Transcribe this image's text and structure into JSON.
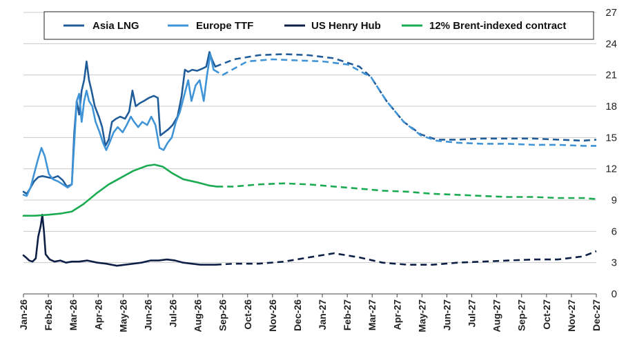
{
  "chart_data": {
    "type": "line",
    "title": "",
    "xlabel": "",
    "ylabel": "",
    "x_range": [
      "2026-01-01",
      "2027-12-01"
    ],
    "x_ticks": [
      "Jan-26",
      "Feb-26",
      "Mar-26",
      "Apr-26",
      "May-26",
      "Jun-26",
      "Jul-26",
      "Aug-26",
      "Sep-26",
      "Oct-26",
      "Nov-26",
      "Dec-26",
      "Jan-27",
      "Feb-27",
      "Mar-27",
      "Apr-27",
      "May-27",
      "Jun-27",
      "Jul-27",
      "Aug-27",
      "Sep-27",
      "Oct-27",
      "Nov-27",
      "Dec-27"
    ],
    "ylim": [
      0,
      27
    ],
    "y_ticks": [
      0,
      3,
      6,
      9,
      12,
      15,
      18,
      21,
      24,
      27
    ],
    "y_axis_side": "right",
    "grid": "horizontal",
    "legend": {
      "placement": "top",
      "boxed": true
    },
    "series": [
      {
        "name": "Asia LNG",
        "color": "#1f5c99",
        "actual": [
          [
            "2026-01-01",
            9.8
          ],
          [
            "2026-01-05",
            9.6
          ],
          [
            "2026-01-09",
            10.1
          ],
          [
            "2026-01-14",
            10.8
          ],
          [
            "2026-01-19",
            11.2
          ],
          [
            "2026-01-24",
            11.3
          ],
          [
            "2026-01-30",
            11.2
          ],
          [
            "2026-02-05",
            11.1
          ],
          [
            "2026-02-12",
            11.3
          ],
          [
            "2026-02-18",
            10.9
          ],
          [
            "2026-02-23",
            10.3
          ],
          [
            "2026-03-01",
            10.5
          ],
          [
            "2026-03-04",
            15.5
          ],
          [
            "2026-03-07",
            18.5
          ],
          [
            "2026-03-10",
            17.2
          ],
          [
            "2026-03-13",
            19.5
          ],
          [
            "2026-03-16",
            20.5
          ],
          [
            "2026-03-19",
            22.3
          ],
          [
            "2026-03-22",
            20.5
          ],
          [
            "2026-03-25",
            19.5
          ],
          [
            "2026-03-29",
            18.0
          ],
          [
            "2026-04-03",
            17.0
          ],
          [
            "2026-04-07",
            16.0
          ],
          [
            "2026-04-11",
            14.2
          ],
          [
            "2026-04-15",
            14.8
          ],
          [
            "2026-04-19",
            16.5
          ],
          [
            "2026-04-24",
            16.8
          ],
          [
            "2026-04-29",
            17.0
          ],
          [
            "2026-05-05",
            16.8
          ],
          [
            "2026-05-10",
            17.5
          ],
          [
            "2026-05-14",
            19.5
          ],
          [
            "2026-05-18",
            18.0
          ],
          [
            "2026-05-23",
            18.3
          ],
          [
            "2026-05-28",
            18.5
          ],
          [
            "2026-06-03",
            18.8
          ],
          [
            "2026-06-09",
            19.0
          ],
          [
            "2026-06-14",
            18.8
          ],
          [
            "2026-06-17",
            15.2
          ],
          [
            "2026-06-22",
            15.5
          ],
          [
            "2026-06-27",
            15.8
          ],
          [
            "2026-07-02",
            16.2
          ],
          [
            "2026-07-08",
            17.0
          ],
          [
            "2026-07-13",
            19.0
          ],
          [
            "2026-07-17",
            21.5
          ],
          [
            "2026-07-21",
            21.3
          ],
          [
            "2026-07-26",
            21.5
          ],
          [
            "2026-08-01",
            21.4
          ],
          [
            "2026-08-07",
            21.6
          ],
          [
            "2026-08-12",
            21.8
          ],
          [
            "2026-08-16",
            23.2
          ],
          [
            "2026-08-19",
            22.5
          ],
          [
            "2026-08-23",
            21.8
          ]
        ],
        "forecast": [
          [
            "2026-08-23",
            21.8
          ],
          [
            "2026-09-15",
            22.5
          ],
          [
            "2026-10-15",
            22.9
          ],
          [
            "2026-11-15",
            23.0
          ],
          [
            "2026-12-15",
            22.9
          ],
          [
            "2027-01-15",
            22.6
          ],
          [
            "2027-02-15",
            21.8
          ],
          [
            "2027-03-01",
            20.8
          ],
          [
            "2027-03-20",
            18.5
          ],
          [
            "2027-04-10",
            16.5
          ],
          [
            "2027-05-01",
            15.3
          ],
          [
            "2027-05-20",
            14.8
          ],
          [
            "2027-06-15",
            14.8
          ],
          [
            "2027-07-15",
            14.9
          ],
          [
            "2027-08-15",
            14.9
          ],
          [
            "2027-09-15",
            14.9
          ],
          [
            "2027-10-15",
            14.8
          ],
          [
            "2027-11-15",
            14.7
          ],
          [
            "2027-12-01",
            14.8
          ]
        ]
      },
      {
        "name": "Europe TTF",
        "color": "#3f94d8",
        "actual": [
          [
            "2026-01-01",
            9.5
          ],
          [
            "2026-01-05",
            9.4
          ],
          [
            "2026-01-10",
            10.3
          ],
          [
            "2026-01-14",
            11.5
          ],
          [
            "2026-01-19",
            13.0
          ],
          [
            "2026-01-23",
            14.0
          ],
          [
            "2026-01-27",
            13.2
          ],
          [
            "2026-02-01",
            11.5
          ],
          [
            "2026-02-06",
            11.0
          ],
          [
            "2026-02-12",
            10.8
          ],
          [
            "2026-02-18",
            10.5
          ],
          [
            "2026-02-24",
            10.2
          ],
          [
            "2026-03-01",
            10.5
          ],
          [
            "2026-03-04",
            14.5
          ],
          [
            "2026-03-07",
            18.5
          ],
          [
            "2026-03-10",
            19.2
          ],
          [
            "2026-03-13",
            16.5
          ],
          [
            "2026-03-16",
            18.5
          ],
          [
            "2026-03-19",
            19.5
          ],
          [
            "2026-03-22",
            18.5
          ],
          [
            "2026-03-26",
            18.0
          ],
          [
            "2026-03-30",
            16.5
          ],
          [
            "2026-04-04",
            15.5
          ],
          [
            "2026-04-08",
            14.5
          ],
          [
            "2026-04-12",
            13.8
          ],
          [
            "2026-04-16",
            14.5
          ],
          [
            "2026-04-21",
            15.5
          ],
          [
            "2026-04-26",
            16.0
          ],
          [
            "2026-05-02",
            15.5
          ],
          [
            "2026-05-07",
            16.2
          ],
          [
            "2026-05-12",
            17.0
          ],
          [
            "2026-05-16",
            16.5
          ],
          [
            "2026-05-21",
            16.0
          ],
          [
            "2026-05-26",
            16.5
          ],
          [
            "2026-06-01",
            16.2
          ],
          [
            "2026-06-06",
            17.0
          ],
          [
            "2026-06-11",
            16.2
          ],
          [
            "2026-06-16",
            14.0
          ],
          [
            "2026-06-21",
            13.8
          ],
          [
            "2026-06-26",
            14.5
          ],
          [
            "2026-07-01",
            15.0
          ],
          [
            "2026-07-06",
            16.5
          ],
          [
            "2026-07-11",
            17.5
          ],
          [
            "2026-07-16",
            19.0
          ],
          [
            "2026-07-21",
            20.5
          ],
          [
            "2026-07-25",
            18.5
          ],
          [
            "2026-07-30",
            20.0
          ],
          [
            "2026-08-04",
            20.5
          ],
          [
            "2026-08-09",
            18.5
          ],
          [
            "2026-08-13",
            21.0
          ],
          [
            "2026-08-17",
            23.0
          ],
          [
            "2026-08-21",
            21.5
          ]
        ],
        "forecast": [
          [
            "2026-08-21",
            21.5
          ],
          [
            "2026-09-01",
            21.0
          ],
          [
            "2026-10-01",
            22.3
          ],
          [
            "2026-11-01",
            22.5
          ],
          [
            "2026-12-01",
            22.4
          ],
          [
            "2027-01-01",
            22.3
          ],
          [
            "2027-02-01",
            22.0
          ],
          [
            "2027-03-01",
            20.8
          ],
          [
            "2027-03-20",
            18.5
          ],
          [
            "2027-04-10",
            16.5
          ],
          [
            "2027-05-01",
            15.2
          ],
          [
            "2027-05-20",
            14.7
          ],
          [
            "2027-06-15",
            14.5
          ],
          [
            "2027-07-15",
            14.4
          ],
          [
            "2027-08-15",
            14.4
          ],
          [
            "2027-09-15",
            14.3
          ],
          [
            "2027-10-15",
            14.3
          ],
          [
            "2027-11-15",
            14.2
          ],
          [
            "2027-12-01",
            14.2
          ]
        ]
      },
      {
        "name": "US Henry Hub",
        "color": "#0d1f45",
        "actual": [
          [
            "2026-01-01",
            3.7
          ],
          [
            "2026-01-04",
            3.5
          ],
          [
            "2026-01-08",
            3.2
          ],
          [
            "2026-01-12",
            3.1
          ],
          [
            "2026-01-16",
            3.4
          ],
          [
            "2026-01-19",
            5.5
          ],
          [
            "2026-01-22",
            6.5
          ],
          [
            "2026-01-24",
            7.6
          ],
          [
            "2026-01-26",
            6.0
          ],
          [
            "2026-01-28",
            3.8
          ],
          [
            "2026-02-02",
            3.3
          ],
          [
            "2026-02-08",
            3.1
          ],
          [
            "2026-02-15",
            3.2
          ],
          [
            "2026-02-22",
            3.0
          ],
          [
            "2026-03-01",
            3.1
          ],
          [
            "2026-03-10",
            3.1
          ],
          [
            "2026-03-20",
            3.2
          ],
          [
            "2026-04-01",
            3.0
          ],
          [
            "2026-04-12",
            2.9
          ],
          [
            "2026-04-25",
            2.7
          ],
          [
            "2026-05-05",
            2.8
          ],
          [
            "2026-05-15",
            2.9
          ],
          [
            "2026-05-25",
            3.0
          ],
          [
            "2026-06-05",
            3.2
          ],
          [
            "2026-06-15",
            3.2
          ],
          [
            "2026-06-25",
            3.3
          ],
          [
            "2026-07-05",
            3.2
          ],
          [
            "2026-07-15",
            3.0
          ],
          [
            "2026-07-25",
            2.9
          ],
          [
            "2026-08-05",
            2.8
          ],
          [
            "2026-08-15",
            2.8
          ],
          [
            "2026-08-23",
            2.8
          ]
        ],
        "forecast": [
          [
            "2026-08-23",
            2.8
          ],
          [
            "2026-09-15",
            2.9
          ],
          [
            "2026-10-15",
            2.9
          ],
          [
            "2026-11-15",
            3.1
          ],
          [
            "2026-12-15",
            3.5
          ],
          [
            "2027-01-15",
            3.9
          ],
          [
            "2027-02-15",
            3.5
          ],
          [
            "2027-03-15",
            3.0
          ],
          [
            "2027-04-15",
            2.8
          ],
          [
            "2027-05-15",
            2.8
          ],
          [
            "2027-06-15",
            3.0
          ],
          [
            "2027-07-15",
            3.1
          ],
          [
            "2027-08-15",
            3.2
          ],
          [
            "2027-09-15",
            3.3
          ],
          [
            "2027-10-15",
            3.3
          ],
          [
            "2027-11-15",
            3.6
          ],
          [
            "2027-12-01",
            4.1
          ]
        ]
      },
      {
        "name": "12% Brent-indexed contract",
        "color": "#1aab52",
        "actual": [
          [
            "2026-01-01",
            7.5
          ],
          [
            "2026-01-15",
            7.5
          ],
          [
            "2026-02-01",
            7.6
          ],
          [
            "2026-02-15",
            7.7
          ],
          [
            "2026-03-01",
            7.9
          ],
          [
            "2026-03-15",
            8.6
          ],
          [
            "2026-04-01",
            9.7
          ],
          [
            "2026-04-15",
            10.5
          ],
          [
            "2026-05-01",
            11.2
          ],
          [
            "2026-05-15",
            11.8
          ],
          [
            "2026-06-01",
            12.3
          ],
          [
            "2026-06-10",
            12.4
          ],
          [
            "2026-06-20",
            12.2
          ],
          [
            "2026-07-01",
            11.6
          ],
          [
            "2026-07-15",
            11.0
          ],
          [
            "2026-08-01",
            10.7
          ],
          [
            "2026-08-15",
            10.4
          ],
          [
            "2026-08-25",
            10.3
          ]
        ],
        "forecast": [
          [
            "2026-08-25",
            10.3
          ],
          [
            "2026-09-15",
            10.3
          ],
          [
            "2026-10-15",
            10.5
          ],
          [
            "2026-11-15",
            10.6
          ],
          [
            "2026-12-15",
            10.5
          ],
          [
            "2027-01-15",
            10.3
          ],
          [
            "2027-02-15",
            10.1
          ],
          [
            "2027-03-15",
            9.9
          ],
          [
            "2027-04-15",
            9.8
          ],
          [
            "2027-05-15",
            9.6
          ],
          [
            "2027-06-15",
            9.5
          ],
          [
            "2027-07-15",
            9.4
          ],
          [
            "2027-08-15",
            9.3
          ],
          [
            "2027-09-15",
            9.3
          ],
          [
            "2027-10-15",
            9.2
          ],
          [
            "2027-11-15",
            9.2
          ],
          [
            "2027-12-01",
            9.1
          ]
        ]
      }
    ]
  }
}
